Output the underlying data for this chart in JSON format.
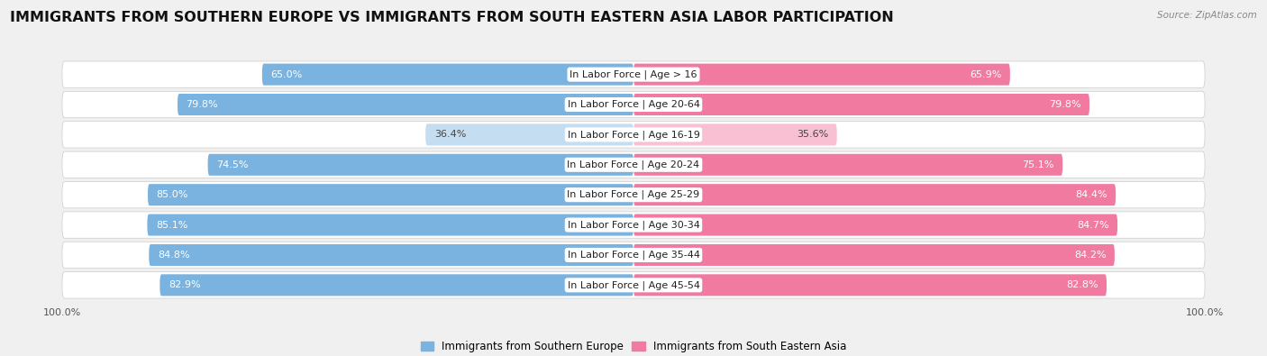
{
  "title": "IMMIGRANTS FROM SOUTHERN EUROPE VS IMMIGRANTS FROM SOUTH EASTERN ASIA LABOR PARTICIPATION",
  "source": "Source: ZipAtlas.com",
  "categories": [
    "In Labor Force | Age > 16",
    "In Labor Force | Age 20-64",
    "In Labor Force | Age 16-19",
    "In Labor Force | Age 20-24",
    "In Labor Force | Age 25-29",
    "In Labor Force | Age 30-34",
    "In Labor Force | Age 35-44",
    "In Labor Force | Age 45-54"
  ],
  "left_values": [
    65.0,
    79.8,
    36.4,
    74.5,
    85.0,
    85.1,
    84.8,
    82.9
  ],
  "right_values": [
    65.9,
    79.8,
    35.6,
    75.1,
    84.4,
    84.7,
    84.2,
    82.8
  ],
  "left_color": "#7ab3df",
  "right_color": "#f07aa0",
  "left_color_light": "#c5ddf0",
  "right_color_light": "#f9c0d3",
  "bar_height": 0.72,
  "max_value": 100.0,
  "bg_color": "#f0f0f0",
  "row_bg_color": "#e8e8e8",
  "row_bg_color2": "#dedede",
  "legend_left": "Immigrants from Southern Europe",
  "legend_right": "Immigrants from South Eastern Asia",
  "title_fontsize": 11.5,
  "label_fontsize": 8,
  "value_fontsize": 8,
  "axis_label_fontsize": 8
}
